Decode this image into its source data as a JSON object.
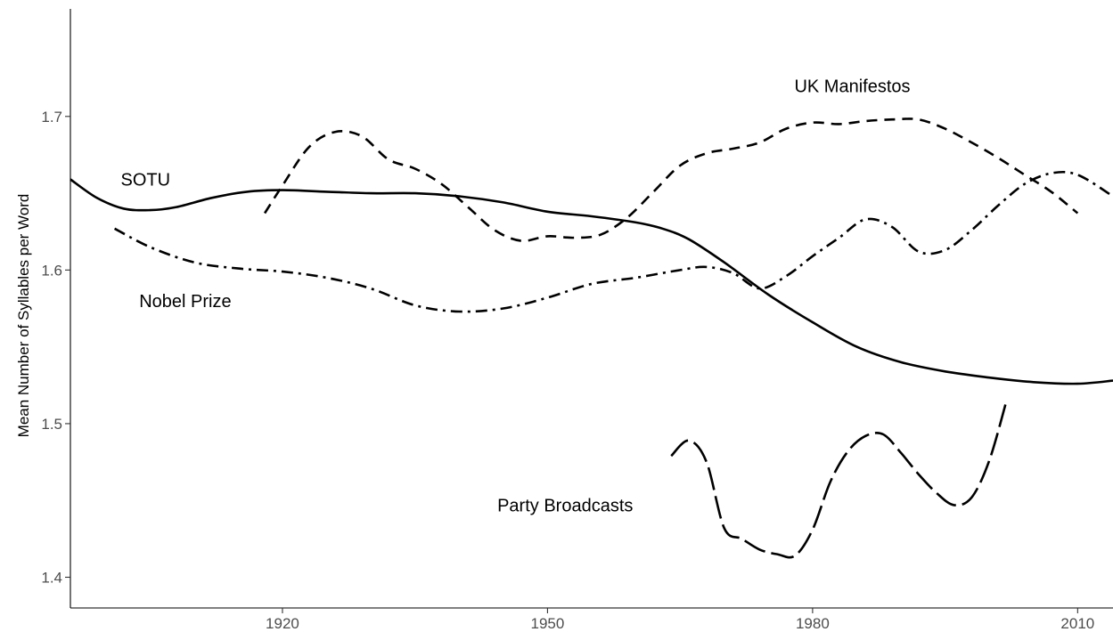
{
  "chart_data": {
    "type": "line",
    "title": "",
    "xlabel": "",
    "ylabel": "Mean Number of Syllables per Word",
    "xlim": [
      1896,
      2014
    ],
    "ylim": [
      1.38,
      1.77
    ],
    "xticks": [
      1920,
      1950,
      1980,
      2010
    ],
    "yticks": [
      1.4,
      1.5,
      1.6,
      1.7
    ],
    "grid": false,
    "legend": "none",
    "series": [
      {
        "name": "SOTU",
        "linestyle": "solid",
        "x": [
          1896,
          1899,
          1902,
          1905,
          1908,
          1912,
          1916,
          1920,
          1925,
          1930,
          1935,
          1940,
          1945,
          1950,
          1955,
          1960,
          1963,
          1966,
          1970,
          1975,
          1980,
          1985,
          1990,
          1995,
          2000,
          2005,
          2010,
          2014
        ],
        "values": [
          1.659,
          1.647,
          1.64,
          1.639,
          1.641,
          1.647,
          1.651,
          1.652,
          1.651,
          1.65,
          1.65,
          1.648,
          1.644,
          1.638,
          1.635,
          1.631,
          1.627,
          1.62,
          1.605,
          1.584,
          1.566,
          1.55,
          1.54,
          1.534,
          1.53,
          1.527,
          1.526,
          1.528
        ]
      },
      {
        "name": "UK Manifestos",
        "linestyle": "dashed",
        "x": [
          1918,
          1920,
          1923,
          1926,
          1929,
          1932,
          1935,
          1938,
          1941,
          1944,
          1947,
          1950,
          1953,
          1956,
          1959,
          1962,
          1965,
          1968,
          1971,
          1974,
          1977,
          1980,
          1983,
          1986,
          1989,
          1992,
          1995,
          1998,
          2001,
          2004,
          2007,
          2010
        ],
        "values": [
          1.637,
          1.655,
          1.68,
          1.69,
          1.687,
          1.672,
          1.666,
          1.656,
          1.641,
          1.626,
          1.619,
          1.622,
          1.621,
          1.623,
          1.634,
          1.651,
          1.668,
          1.676,
          1.679,
          1.683,
          1.692,
          1.696,
          1.695,
          1.697,
          1.698,
          1.698,
          1.692,
          1.683,
          1.673,
          1.662,
          1.651,
          1.637
        ]
      },
      {
        "name": "Nobel Prize",
        "linestyle": "dashdot",
        "x": [
          1901,
          1905,
          1910,
          1915,
          1920,
          1925,
          1930,
          1935,
          1940,
          1945,
          1950,
          1955,
          1960,
          1965,
          1968,
          1971,
          1974,
          1977,
          1980,
          1983,
          1986,
          1989,
          1992,
          1995,
          1998,
          2001,
          2004,
          2007,
          2010,
          2014
        ],
        "values": [
          1.627,
          1.615,
          1.605,
          1.601,
          1.599,
          1.595,
          1.588,
          1.577,
          1.573,
          1.575,
          1.582,
          1.591,
          1.595,
          1.6,
          1.602,
          1.598,
          1.588,
          1.596,
          1.609,
          1.621,
          1.633,
          1.628,
          1.612,
          1.613,
          1.626,
          1.642,
          1.656,
          1.663,
          1.662,
          1.648
        ]
      },
      {
        "name": "Party Broadcasts",
        "linestyle": "longdash",
        "x": [
          1964,
          1966,
          1968,
          1970,
          1972,
          1974,
          1976,
          1978,
          1980,
          1982,
          1984,
          1986,
          1988,
          1990,
          1992,
          1994,
          1996,
          1998,
          2000,
          2002
        ],
        "values": [
          1.479,
          1.489,
          1.475,
          1.432,
          1.425,
          1.418,
          1.415,
          1.414,
          1.431,
          1.462,
          1.482,
          1.492,
          1.493,
          1.481,
          1.467,
          1.455,
          1.447,
          1.452,
          1.476,
          1.516
        ]
      }
    ],
    "annotations": [
      {
        "series": "SOTU",
        "text": "SOTU",
        "x": 1904.5,
        "y": 1.659
      },
      {
        "series": "UK Manifestos",
        "text": "UK Manifestos",
        "x": 1984.5,
        "y": 1.72
      },
      {
        "series": "Nobel Prize",
        "text": "Nobel Prize",
        "x": 1909,
        "y": 1.58
      },
      {
        "series": "Party Broadcasts",
        "text": "Party Broadcasts",
        "x": 1952,
        "y": 1.447
      }
    ]
  }
}
